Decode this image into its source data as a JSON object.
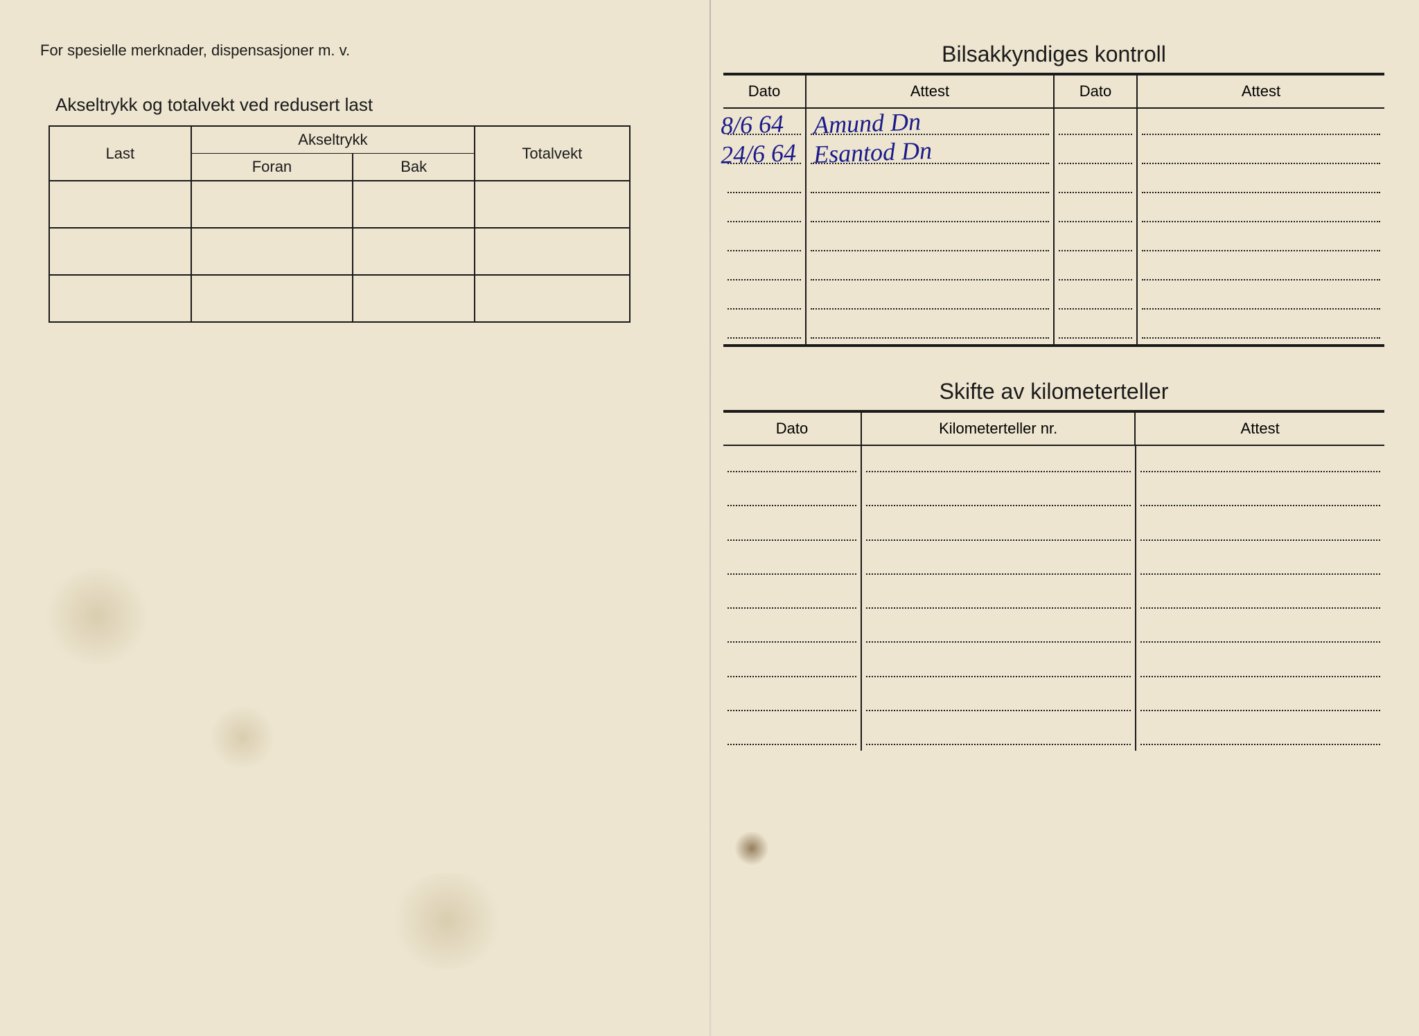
{
  "colors": {
    "paper": "#ede5d0",
    "ink": "#1a1a1a",
    "pen": "#1a1a8a",
    "border": "#1a1a1a"
  },
  "left": {
    "note": "For spesielle merknader, dispensasjoner m. v.",
    "axle": {
      "title": "Akseltrykk og totalvekt ved redusert last",
      "headers": {
        "last": "Last",
        "akseltrykk": "Akseltrykk",
        "foran": "Foran",
        "bak": "Bak",
        "totalvekt": "Totalvekt"
      },
      "rows": [
        {
          "last": "",
          "foran": "",
          "bak": "",
          "totalvekt": ""
        },
        {
          "last": "",
          "foran": "",
          "bak": "",
          "totalvekt": ""
        },
        {
          "last": "",
          "foran": "",
          "bak": "",
          "totalvekt": ""
        }
      ]
    }
  },
  "right": {
    "kontroll": {
      "title": "Bilsakkyndiges kontroll",
      "headers": {
        "dato": "Dato",
        "attest": "Attest"
      },
      "dotted_row_count": 8,
      "handwritten": [
        {
          "dato": "8/6 64",
          "attest": "Amund Dn"
        },
        {
          "dato": "24/6 64",
          "attest": "Esantod Dn"
        }
      ]
    },
    "skifte": {
      "title": "Skifte av kilometerteller",
      "headers": {
        "dato": "Dato",
        "km": "Kilometerteller nr.",
        "attest": "Attest"
      },
      "dotted_row_count": 9,
      "rows": []
    }
  }
}
